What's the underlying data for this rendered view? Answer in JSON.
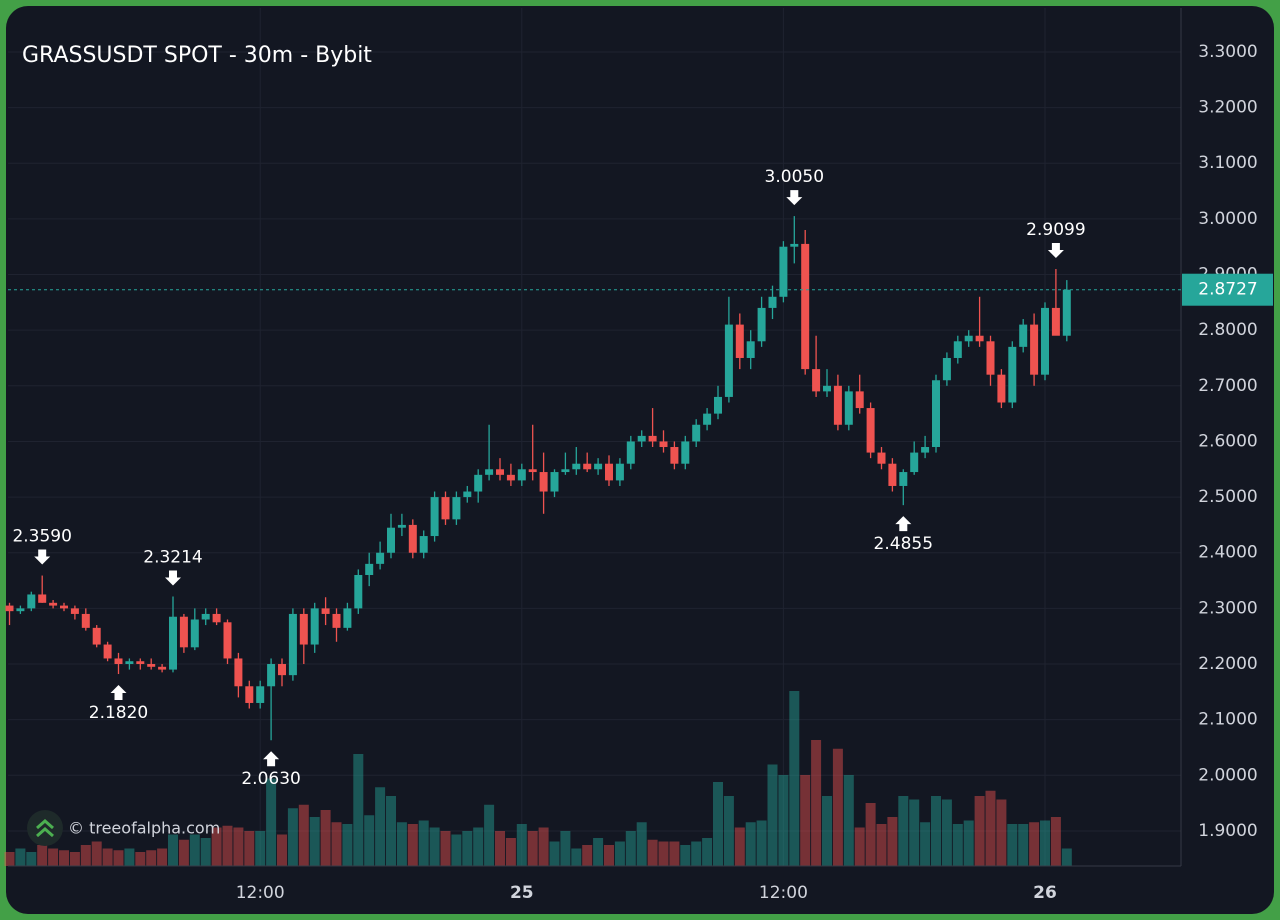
{
  "chart_data": {
    "type": "candlestick",
    "title": "GRASSUSDT SPOT - 30m - Bybit",
    "watermark": "© treeofalpha.com",
    "categories": [
      null,
      null,
      null,
      null,
      null,
      null,
      null,
      null,
      null,
      null,
      null,
      null,
      null,
      null,
      null,
      null,
      null,
      null,
      null,
      null,
      null,
      null,
      null,
      "12:00",
      null,
      null,
      null,
      null,
      null,
      null,
      null,
      null,
      null,
      null,
      null,
      null,
      null,
      null,
      null,
      null,
      null,
      null,
      null,
      null,
      null,
      null,
      null,
      "25",
      null,
      null,
      null,
      null,
      null,
      null,
      null,
      null,
      null,
      null,
      null,
      null,
      null,
      null,
      null,
      null,
      null,
      null,
      null,
      null,
      null,
      null,
      null,
      "12:00",
      null,
      null,
      null,
      null,
      null,
      null,
      null,
      null,
      null,
      null,
      null,
      null,
      null,
      null,
      null,
      null,
      null,
      null,
      null,
      null,
      null,
      null,
      null,
      "26",
      null,
      null
    ],
    "open": [
      2.305,
      2.295,
      2.3,
      2.325,
      2.31,
      2.305,
      2.3,
      2.29,
      2.265,
      2.235,
      2.21,
      2.2,
      2.205,
      2.2,
      2.195,
      2.19,
      2.285,
      2.23,
      2.28,
      2.29,
      2.275,
      2.21,
      2.16,
      2.13,
      2.16,
      2.2,
      2.18,
      2.29,
      2.235,
      2.3,
      2.29,
      2.265,
      2.3,
      2.36,
      2.38,
      2.4,
      2.445,
      2.45,
      2.4,
      2.43,
      2.5,
      2.46,
      2.5,
      2.51,
      2.54,
      2.55,
      2.54,
      2.53,
      2.55,
      2.545,
      2.51,
      2.545,
      2.55,
      2.56,
      2.55,
      2.56,
      2.53,
      2.56,
      2.6,
      2.61,
      2.6,
      2.59,
      2.56,
      2.6,
      2.63,
      2.65,
      2.68,
      2.81,
      2.75,
      2.78,
      2.84,
      2.86,
      2.95,
      2.955,
      2.73,
      2.69,
      2.7,
      2.63,
      2.69,
      2.66,
      2.58,
      2.56,
      2.52,
      2.545,
      2.58,
      2.59,
      2.71,
      2.75,
      2.78,
      2.79,
      2.78,
      2.72,
      2.67,
      2.77,
      2.81,
      2.72,
      2.84,
      2.79
    ],
    "high": [
      2.31,
      2.305,
      2.33,
      2.359,
      2.315,
      2.31,
      2.305,
      2.3,
      2.27,
      2.24,
      2.22,
      2.21,
      2.21,
      2.21,
      2.2,
      2.3214,
      2.29,
      2.3,
      2.3,
      2.3,
      2.28,
      2.22,
      2.17,
      2.17,
      2.21,
      2.21,
      2.3,
      2.3,
      2.31,
      2.32,
      2.3,
      2.31,
      2.37,
      2.4,
      2.42,
      2.47,
      2.47,
      2.46,
      2.44,
      2.51,
      2.51,
      2.51,
      2.52,
      2.55,
      2.63,
      2.57,
      2.56,
      2.56,
      2.63,
      2.58,
      2.55,
      2.58,
      2.59,
      2.58,
      2.57,
      2.575,
      2.57,
      2.61,
      2.62,
      2.66,
      2.62,
      2.6,
      2.61,
      2.64,
      2.66,
      2.7,
      2.86,
      2.83,
      2.8,
      2.86,
      2.88,
      2.96,
      3.005,
      2.98,
      2.79,
      2.73,
      2.72,
      2.7,
      2.72,
      2.67,
      2.59,
      2.57,
      2.55,
      2.6,
      2.61,
      2.72,
      2.76,
      2.79,
      2.8,
      2.86,
      2.79,
      2.73,
      2.78,
      2.82,
      2.83,
      2.85,
      2.9099,
      2.89
    ],
    "low": [
      2.27,
      2.29,
      2.295,
      2.31,
      2.3,
      2.295,
      2.28,
      2.26,
      2.23,
      2.205,
      2.182,
      2.19,
      2.19,
      2.19,
      2.185,
      2.185,
      2.22,
      2.225,
      2.27,
      2.27,
      2.2,
      2.14,
      2.12,
      2.12,
      2.063,
      2.16,
      2.17,
      2.2,
      2.22,
      2.27,
      2.24,
      2.26,
      2.29,
      2.34,
      2.37,
      2.39,
      2.43,
      2.39,
      2.39,
      2.42,
      2.45,
      2.45,
      2.49,
      2.49,
      2.53,
      2.53,
      2.52,
      2.52,
      2.53,
      2.47,
      2.5,
      2.54,
      2.54,
      2.545,
      2.54,
      2.52,
      2.52,
      2.55,
      2.59,
      2.59,
      2.58,
      2.55,
      2.55,
      2.59,
      2.62,
      2.64,
      2.67,
      2.73,
      2.73,
      2.77,
      2.82,
      2.85,
      2.92,
      2.72,
      2.68,
      2.68,
      2.62,
      2.62,
      2.65,
      2.57,
      2.55,
      2.51,
      2.4855,
      2.54,
      2.57,
      2.58,
      2.7,
      2.74,
      2.77,
      2.77,
      2.7,
      2.66,
      2.66,
      2.76,
      2.7,
      2.71,
      2.8,
      2.78
    ],
    "close": [
      2.295,
      2.3,
      2.325,
      2.31,
      2.305,
      2.3,
      2.29,
      2.265,
      2.235,
      2.21,
      2.2,
      2.205,
      2.2,
      2.195,
      2.19,
      2.285,
      2.23,
      2.28,
      2.29,
      2.275,
      2.21,
      2.16,
      2.13,
      2.16,
      2.2,
      2.18,
      2.29,
      2.235,
      2.3,
      2.29,
      2.265,
      2.3,
      2.36,
      2.38,
      2.4,
      2.445,
      2.45,
      2.4,
      2.43,
      2.5,
      2.46,
      2.5,
      2.51,
      2.54,
      2.55,
      2.54,
      2.53,
      2.55,
      2.545,
      2.51,
      2.545,
      2.55,
      2.56,
      2.55,
      2.56,
      2.53,
      2.56,
      2.6,
      2.61,
      2.6,
      2.59,
      2.56,
      2.6,
      2.63,
      2.65,
      2.68,
      2.81,
      2.75,
      2.78,
      2.84,
      2.86,
      2.95,
      2.955,
      2.73,
      2.69,
      2.7,
      2.63,
      2.69,
      2.66,
      2.58,
      2.56,
      2.52,
      2.545,
      2.58,
      2.59,
      2.71,
      2.75,
      2.78,
      2.79,
      2.78,
      2.72,
      2.67,
      2.77,
      2.81,
      2.72,
      2.84,
      2.79,
      2.8727
    ],
    "volume": [
      8,
      10,
      8,
      12,
      10,
      9,
      8,
      12,
      14,
      10,
      9,
      10,
      8,
      9,
      10,
      18,
      15,
      18,
      16,
      22,
      23,
      22,
      20,
      20,
      50,
      18,
      33,
      35,
      28,
      32,
      25,
      24,
      64,
      29,
      45,
      40,
      25,
      24,
      26,
      22,
      20,
      18,
      20,
      22,
      35,
      20,
      16,
      24,
      20,
      22,
      14,
      20,
      10,
      12,
      16,
      12,
      14,
      20,
      25,
      15,
      14,
      14,
      12,
      14,
      16,
      48,
      40,
      22,
      25,
      26,
      58,
      52,
      100,
      52,
      72,
      40,
      67,
      52,
      22,
      36,
      24,
      28,
      40,
      38,
      25,
      40,
      38,
      24,
      26,
      40,
      43,
      38,
      24,
      24,
      25,
      26,
      28,
      10
    ],
    "high_labels": [
      null,
      null,
      null,
      "2.3590",
      null,
      null,
      null,
      null,
      null,
      null,
      null,
      null,
      null,
      null,
      null,
      "2.3214",
      null,
      null,
      null,
      null,
      null,
      null,
      null,
      null,
      null,
      null,
      null,
      null,
      null,
      null,
      null,
      null,
      null,
      null,
      null,
      null,
      null,
      null,
      null,
      null,
      null,
      null,
      null,
      null,
      null,
      null,
      null,
      null,
      null,
      null,
      null,
      null,
      null,
      null,
      null,
      null,
      null,
      null,
      null,
      null,
      null,
      null,
      null,
      null,
      null,
      null,
      null,
      null,
      null,
      null,
      null,
      null,
      "3.0050",
      null,
      null,
      null,
      null,
      null,
      null,
      null,
      null,
      null,
      null,
      null,
      null,
      null,
      null,
      null,
      null,
      null,
      null,
      null,
      null,
      null,
      null,
      null,
      "2.9099",
      null
    ],
    "low_labels": [
      null,
      null,
      null,
      null,
      null,
      null,
      null,
      null,
      null,
      null,
      "2.1820",
      null,
      null,
      null,
      null,
      null,
      null,
      null,
      null,
      null,
      null,
      null,
      null,
      null,
      "2.0630",
      null,
      null,
      null,
      null,
      null,
      null,
      null,
      null,
      null,
      null,
      null,
      null,
      null,
      null,
      null,
      null,
      null,
      null,
      null,
      null,
      null,
      null,
      null,
      null,
      null,
      null,
      null,
      null,
      null,
      null,
      null,
      null,
      null,
      null,
      null,
      null,
      null,
      null,
      null,
      null,
      null,
      null,
      null,
      null,
      null,
      null,
      null,
      null,
      null,
      null,
      null,
      null,
      null,
      null,
      null,
      null,
      null,
      "2.4855",
      null,
      null,
      null,
      null,
      null,
      null,
      null,
      null,
      null,
      null,
      null,
      null,
      null,
      null,
      null,
      null,
      null
    ],
    "last_price": 2.8727,
    "ylim": [
      1.837,
      3.379
    ],
    "yticks": [
      {
        "value": 1.9,
        "label": "1.9000"
      },
      {
        "value": 2.0,
        "label": "2.0000"
      },
      {
        "value": 2.1,
        "label": "2.1000"
      },
      {
        "value": 2.2,
        "label": "2.2000"
      },
      {
        "value": 2.3,
        "label": "2.3000"
      },
      {
        "value": 2.4,
        "label": "2.4000"
      },
      {
        "value": 2.5,
        "label": "2.5000"
      },
      {
        "value": 2.6,
        "label": "2.6000"
      },
      {
        "value": 2.7,
        "label": "2.7000"
      },
      {
        "value": 2.8,
        "label": "2.8000"
      },
      {
        "value": 2.9,
        "label": "2.9000"
      },
      {
        "value": 3.0,
        "label": "3.0000"
      },
      {
        "value": 3.1,
        "label": "3.1000"
      },
      {
        "value": 3.2,
        "label": "3.2000"
      },
      {
        "value": 3.3,
        "label": "3.3000"
      }
    ],
    "up_color": "#26a69a",
    "down_color": "#ef5350",
    "grid": true
  }
}
